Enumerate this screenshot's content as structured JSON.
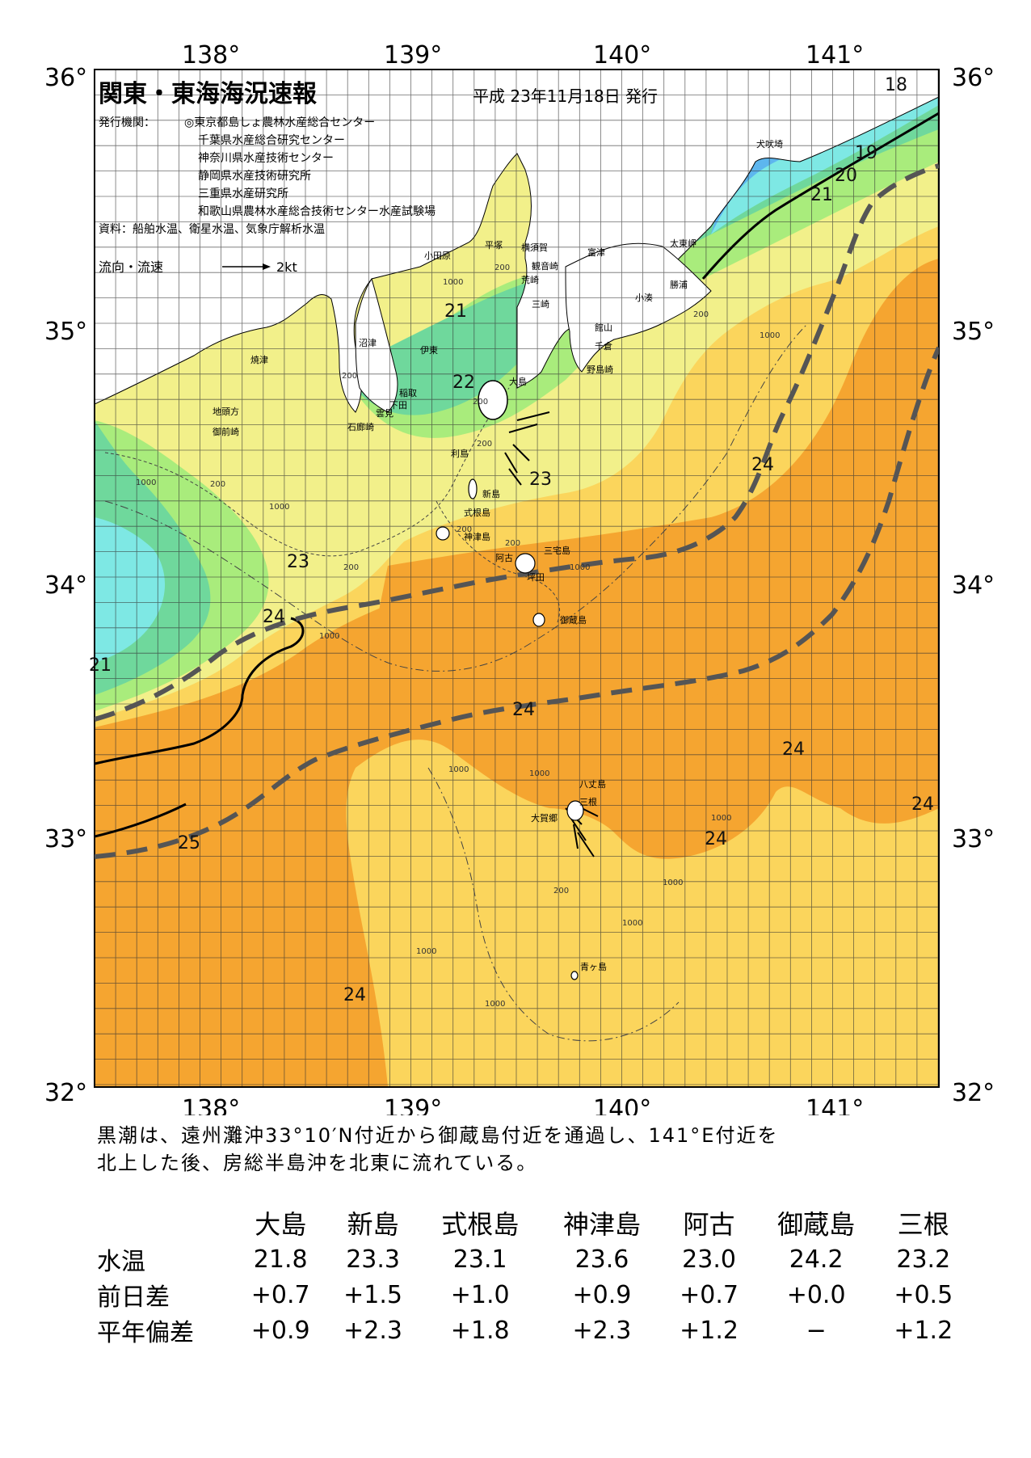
{
  "header": {
    "title": "関東・東海海況速報",
    "date": "平成 23年11月18日 発行",
    "issuer_label": "発行機関：",
    "issuers": [
      "◎東京都島しょ農林水産総合センター",
      "千葉県水産総合研究センター",
      "神奈川県水産技術センター",
      "静岡県水産技術研究所",
      "三重県水産研究所",
      "和歌山県農林水産総合技術センター水産試験場"
    ],
    "sources": "資料：船舶水温、衛星水温、気象庁解析水温",
    "current_legend_label": "流向・流速",
    "current_legend_value": "2kt"
  },
  "axes": {
    "lon_labels": [
      "138°",
      "139°",
      "140°",
      "141°"
    ],
    "lat_labels": [
      "36°",
      "35°",
      "34°",
      "33°",
      "32°"
    ]
  },
  "isotherm_labels": {
    "t18": "18",
    "t19": "19",
    "t20": "20",
    "t21a": "21",
    "t21b": "21",
    "t21c": "21",
    "t22": "22",
    "t23a": "23",
    "t23b": "23",
    "t24a": "24",
    "t24b": "24",
    "t24c": "24",
    "t24d": "24",
    "t24e": "24",
    "t24f": "24",
    "t24g": "24",
    "t25": "25"
  },
  "places": {
    "odawara": "小田原",
    "hiratsuka": "平塚",
    "yokosuka": "横須賀",
    "kannonzaki": "観音崎",
    "araizaki": "荒崎",
    "futtsu": "富津",
    "misaki": "三崎",
    "tateyama": "館山",
    "chikura": "千倉",
    "nojimazaki": "野島崎",
    "kominato": "小湊",
    "katsuura": "勝浦",
    "taitomisaki": "太東岬",
    "inubosaki": "犬吠埼",
    "numazu": "沼津",
    "ito": "伊東",
    "yaizu": "焼津",
    "inatori": "稲取",
    "shimoda": "下田",
    "kumomi": "雲見",
    "irozaki": "石廊崎",
    "jitogata": "地頭方",
    "omaezaki": "御前崎",
    "oshima": "大島",
    "toshima": "利島",
    "niijima": "新島",
    "shikinejima": "式根島",
    "kozushima": "神津島",
    "miyakejima": "三宅島",
    "ako": "阿古",
    "tsubota": "坪田",
    "mikurajima": "御蔵島",
    "hachijojima": "八丈島",
    "mitsune": "三根",
    "okago": "大賀郷",
    "aogashima": "青ヶ島"
  },
  "depth_labels": {
    "d1": "1000",
    "d2": "200",
    "d3": "200",
    "d4": "200",
    "d5": "200",
    "d6": "200",
    "d7": "200",
    "d8": "1000",
    "d9": "200",
    "d10": "1000",
    "d11": "200",
    "d12": "200",
    "d13": "1000",
    "d14": "1000",
    "d15": "1000",
    "d16": "1000",
    "d17": "1000",
    "d18": "1000",
    "d19": "1000",
    "d20": "1000",
    "d21": "1000",
    "d22": "200",
    "d23": "1000"
  },
  "colors": {
    "t17": "#1e6cf0",
    "t18": "#3f93f5",
    "t19": "#5db6ee",
    "t20": "#7ee8e4",
    "t21": "#6fd89c",
    "t22": "#a9ec7c",
    "t23": "#f2f08a",
    "t24": "#fbd55c",
    "t25": "#f5a530",
    "land": "#ffffff",
    "kuroshio": "#555555"
  },
  "summary": {
    "line1": "黒潮は、遠州灘沖33°10′N付近から御蔵島付近を通過し、141°E付近を",
    "line2": "北上した後、房総半島沖を北東に流れている。"
  },
  "table": {
    "columns": [
      "大島",
      "新島",
      "式根島",
      "神津島",
      "阿古",
      "御蔵島",
      "三根"
    ],
    "rows": [
      {
        "label": "水温",
        "values": [
          "21.8",
          "23.3",
          "23.1",
          "23.6",
          "23.0",
          "24.2",
          "23.2"
        ]
      },
      {
        "label": "前日差",
        "values": [
          "+0.7",
          "+1.5",
          "+1.0",
          "+0.9",
          "+0.7",
          "+0.0",
          "+0.5"
        ]
      },
      {
        "label": "平年偏差",
        "values": [
          "+0.9",
          "+2.3",
          "+1.8",
          "+2.3",
          "+1.2",
          "−",
          "+1.2"
        ]
      }
    ]
  }
}
